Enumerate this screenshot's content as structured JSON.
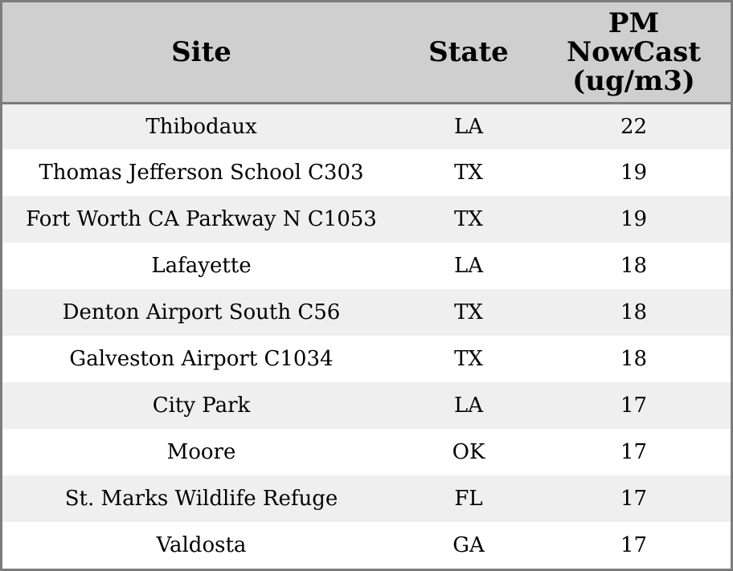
{
  "table": {
    "headers": {
      "site": "Site",
      "state": "State",
      "pm_line1": "PM",
      "pm_line2": "NowCast",
      "pm_line3": "(ug/m3)"
    },
    "rows": [
      {
        "site": "Thibodaux",
        "state": "LA",
        "pm": "22"
      },
      {
        "site": "Thomas Jefferson School C303",
        "state": "TX",
        "pm": "19"
      },
      {
        "site": "Fort Worth CA Parkway N C1053",
        "state": "TX",
        "pm": "19"
      },
      {
        "site": "Lafayette",
        "state": "LA",
        "pm": "18"
      },
      {
        "site": "Denton Airport South C56",
        "state": "TX",
        "pm": "18"
      },
      {
        "site": "Galveston Airport C1034",
        "state": "TX",
        "pm": "18"
      },
      {
        "site": "City Park",
        "state": "LA",
        "pm": "17"
      },
      {
        "site": "Moore",
        "state": "OK",
        "pm": "17"
      },
      {
        "site": "St. Marks Wildlife Refuge",
        "state": "FL",
        "pm": "17"
      },
      {
        "site": "Valdosta",
        "state": "GA",
        "pm": "17"
      }
    ]
  },
  "colors": {
    "header_bg": "#cfcfcf",
    "row_alt_bg": "#efefef",
    "row_bg": "#ffffff",
    "border": "#7c7c7c"
  }
}
